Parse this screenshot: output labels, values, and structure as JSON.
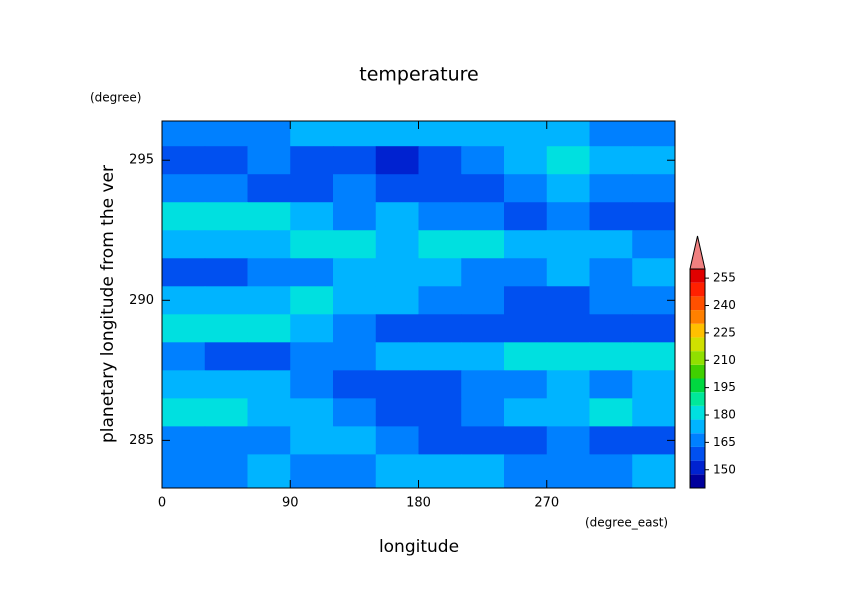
{
  "chart_data": {
    "type": "contour",
    "title": "temperature",
    "x_label": "longitude",
    "x_units": "(degree_east)",
    "y_label": "planetary longitude from the ver",
    "y_units": "(degree)",
    "x": [
      15,
      45,
      75,
      105,
      135,
      165,
      195,
      225,
      255,
      285,
      315,
      345
    ],
    "y": [
      296,
      295,
      294,
      293,
      292,
      291,
      290,
      289,
      288,
      287,
      286,
      285,
      284
    ],
    "z": [
      [
        165,
        165,
        168,
        170,
        170,
        172,
        175,
        175,
        172,
        170,
        168,
        168
      ],
      [
        158,
        160,
        165,
        160,
        155,
        152,
        160,
        165,
        172,
        178,
        175,
        170
      ],
      [
        168,
        165,
        160,
        162,
        165,
        160,
        158,
        162,
        165,
        170,
        168,
        165
      ],
      [
        180,
        182,
        178,
        172,
        168,
        170,
        168,
        165,
        162,
        165,
        160,
        162
      ],
      [
        170,
        172,
        175,
        178,
        178,
        176,
        178,
        178,
        175,
        175,
        172,
        165
      ],
      [
        160,
        162,
        165,
        168,
        172,
        175,
        172,
        168,
        165,
        170,
        168,
        170
      ],
      [
        172,
        170,
        175,
        178,
        176,
        172,
        168,
        165,
        162,
        162,
        165,
        168
      ],
      [
        182,
        180,
        178,
        172,
        165,
        158,
        155,
        158,
        160,
        162,
        160,
        158
      ],
      [
        165,
        160,
        158,
        165,
        168,
        172,
        170,
        172,
        178,
        182,
        182,
        180
      ],
      [
        175,
        172,
        170,
        165,
        160,
        158,
        162,
        165,
        168,
        170,
        168,
        172
      ],
      [
        178,
        180,
        176,
        170,
        165,
        160,
        158,
        165,
        172,
        176,
        178,
        175
      ],
      [
        168,
        165,
        168,
        172,
        172,
        165,
        160,
        158,
        162,
        165,
        160,
        158
      ],
      [
        165,
        168,
        170,
        168,
        165,
        172,
        175,
        170,
        168,
        165,
        168,
        170
      ]
    ],
    "xlim": [
      0,
      360
    ],
    "ylim": [
      283.3,
      296.4
    ],
    "xticks": [
      0,
      90,
      180,
      270
    ],
    "yticks": [
      285,
      290,
      295
    ],
    "levels": [
      140,
      147.5,
      155,
      162.5,
      170,
      177.5,
      185,
      192.5,
      200,
      207.5,
      215,
      222.5,
      230,
      237.5,
      245,
      252.5,
      260
    ],
    "colors": [
      "#00009c",
      "#0022d0",
      "#0050f0",
      "#0080ff",
      "#00b4ff",
      "#00e0e0",
      "#00e89a",
      "#00d840",
      "#40d000",
      "#90e000",
      "#d0e000",
      "#ffc000",
      "#ff8000",
      "#ff5000",
      "#ff2000",
      "#e00000"
    ],
    "over_color": "#f08080",
    "colorbar_ticks": [
      150,
      165,
      180,
      195,
      210,
      225,
      240,
      255
    ]
  }
}
